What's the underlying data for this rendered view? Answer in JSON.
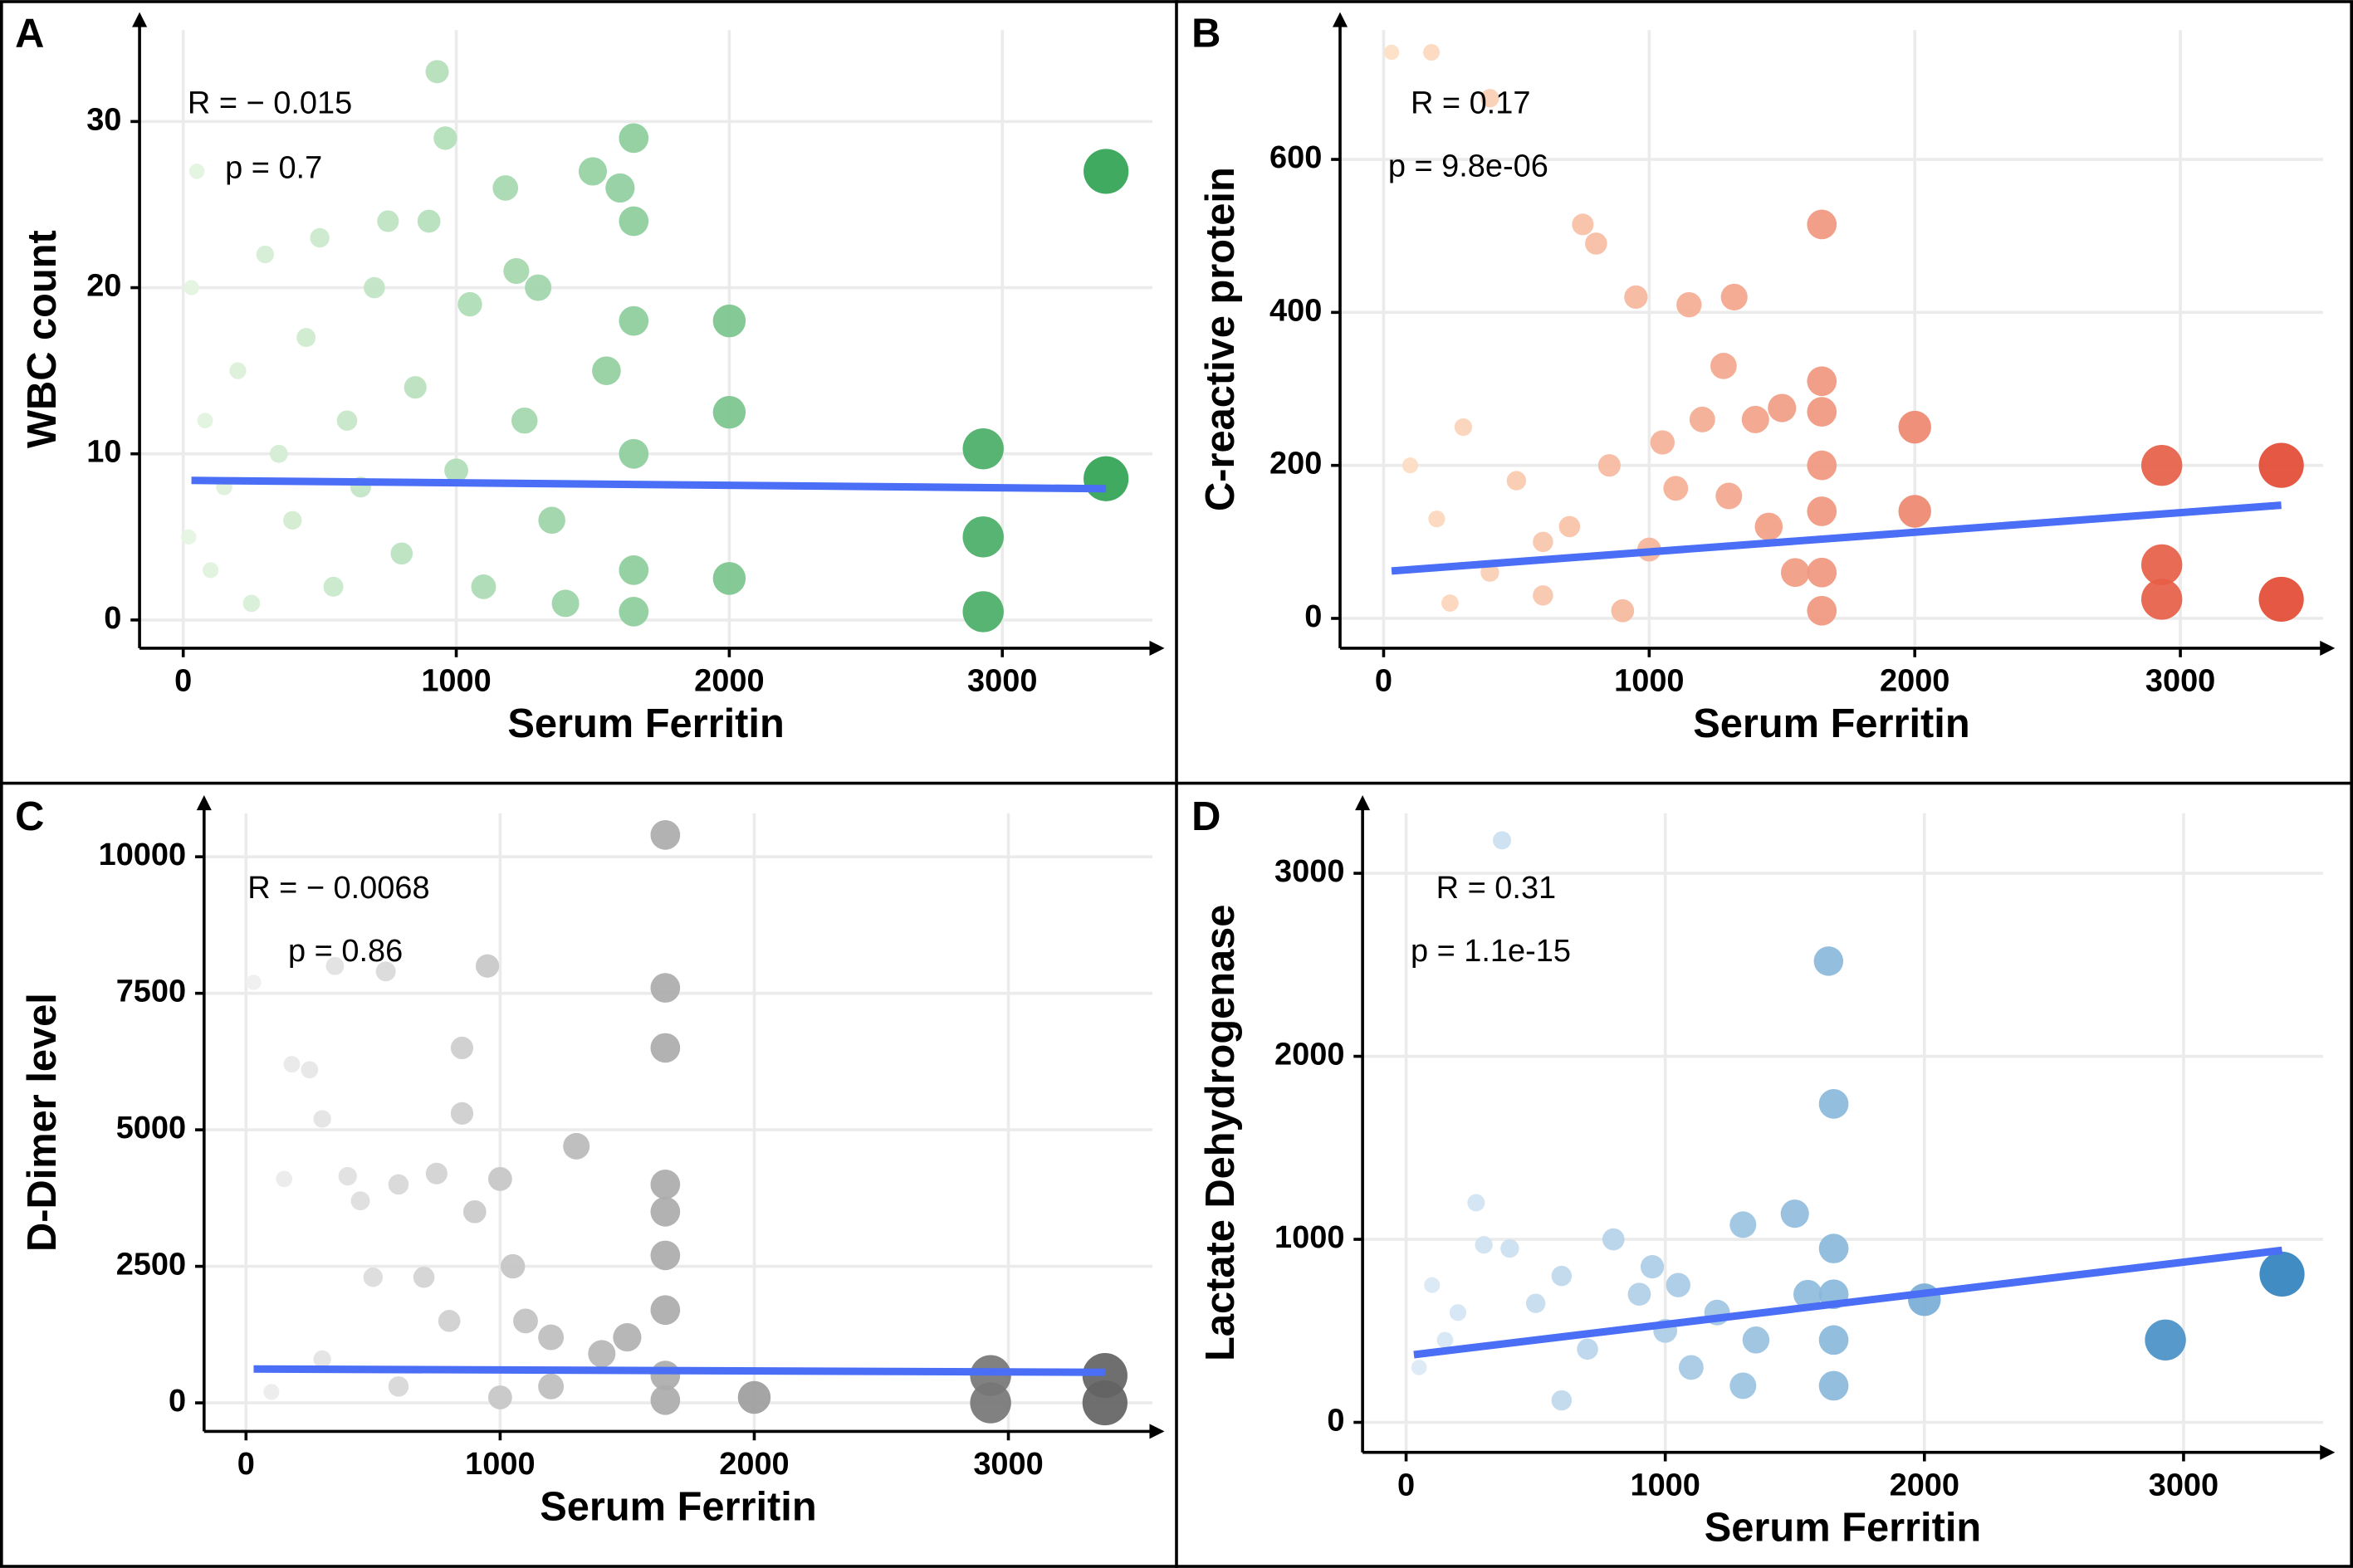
{
  "chart_data": [
    {
      "type": "scatter",
      "panel": "A",
      "x_label": "Serum Ferritin",
      "y_label": "WBC count",
      "annotations": [
        "R = − 0.015",
        "p = 0.7"
      ],
      "color_scale": [
        "#e5f5e0",
        "#31a354"
      ],
      "x": [
        20,
        30,
        50,
        80,
        100,
        150,
        200,
        250,
        300,
        350,
        400,
        450,
        500,
        550,
        600,
        650,
        700,
        750,
        800,
        850,
        900,
        930,
        960,
        1000,
        1050,
        1100,
        1180,
        1220,
        1250,
        1300,
        1350,
        1400,
        1500,
        1550,
        1600,
        1650,
        1650,
        1650,
        1650,
        1650,
        1650,
        2000,
        2000,
        2000,
        2930,
        2930,
        2930,
        3380,
        3380
      ],
      "values": [
        5,
        20,
        27,
        12,
        3,
        8,
        15,
        1,
        22,
        10,
        6,
        17,
        23,
        2,
        12,
        8,
        20,
        24,
        4,
        14,
        24,
        33,
        29,
        9,
        19,
        2,
        26,
        21,
        12,
        20,
        6,
        1,
        27,
        15,
        26,
        29,
        24,
        18,
        10,
        3,
        0.5,
        18,
        12.5,
        2.5,
        10.3,
        5,
        0.5,
        27,
        8.5
      ],
      "fit": {
        "color": "#4a6ef5",
        "x": [
          30,
          3380
        ],
        "values": [
          8.4,
          7.9
        ]
      },
      "xlim": [
        -160,
        3550
      ],
      "ylim": [
        -1.7,
        35.5
      ],
      "xticks": [
        0,
        1000,
        2000,
        3000
      ],
      "yticks": [
        0,
        10,
        20,
        30
      ],
      "grid": true
    },
    {
      "type": "scatter",
      "panel": "B",
      "x_label": "Serum Ferritin",
      "y_label": "C-reactive protein",
      "annotations": [
        "R = 0.17",
        "p = 9.8e-06"
      ],
      "color_scale": [
        "#fde0c5",
        "#e34a33"
      ],
      "x": [
        30,
        180,
        400,
        100,
        200,
        300,
        400,
        500,
        600,
        700,
        750,
        800,
        850,
        950,
        1000,
        1050,
        1100,
        1150,
        1200,
        1280,
        1300,
        1320,
        1400,
        1450,
        1500,
        1550,
        1650,
        1650,
        1650,
        1650,
        1650,
        1650,
        1650,
        2000,
        2000,
        2930,
        2930,
        2930,
        3380,
        3380,
        250,
        600,
        900
      ],
      "values": [
        740,
        740,
        680,
        200,
        130,
        250,
        60,
        180,
        30,
        120,
        515,
        490,
        200,
        420,
        90,
        230,
        170,
        410,
        260,
        330,
        160,
        420,
        260,
        120,
        275,
        60,
        515,
        310,
        270,
        200,
        140,
        60,
        10,
        250,
        140,
        200,
        70,
        25,
        200,
        25,
        20,
        100,
        10
      ],
      "fit": {
        "color": "#4a6ef5",
        "x": [
          30,
          3380
        ],
        "values": [
          62,
          148
        ]
      },
      "xlim": [
        -164,
        3537
      ],
      "ylim": [
        -39,
        769
      ],
      "xticks": [
        0,
        1000,
        2000,
        3000
      ],
      "yticks": [
        0,
        200,
        400,
        600
      ],
      "grid": true
    },
    {
      "type": "scatter",
      "panel": "C",
      "x_label": "Serum Ferritin",
      "y_label": "D-Dimer level",
      "annotations": [
        "R = − 0.0068",
        "p = 0.86"
      ],
      "color_scale": [
        "#f0f0f0",
        "#636363"
      ],
      "x": [
        30,
        150,
        180,
        250,
        300,
        350,
        400,
        450,
        500,
        550,
        600,
        700,
        750,
        800,
        850,
        850,
        900,
        950,
        1000,
        1050,
        1100,
        1200,
        1300,
        1400,
        1500,
        1650,
        1650,
        1650,
        1650,
        1650,
        1650,
        1650,
        1650,
        1650,
        2000,
        2930,
        2930,
        3380,
        3380,
        100,
        300,
        600,
        1000,
        1200
      ],
      "values": [
        7700,
        4100,
        6200,
        6100,
        5200,
        8000,
        4150,
        3700,
        2300,
        7900,
        4000,
        2300,
        4200,
        1500,
        6500,
        5300,
        3500,
        8000,
        4100,
        2500,
        1500,
        1200,
        4700,
        900,
        1200,
        10400,
        7600,
        6500,
        4000,
        3500,
        2700,
        1700,
        500,
        50,
        100,
        500,
        0,
        500,
        0,
        200,
        800,
        300,
        100,
        300
      ],
      "fit": {
        "color": "#4a6ef5",
        "x": [
          30,
          3380
        ],
        "values": [
          620,
          560
        ]
      },
      "xlim": [
        -165,
        3567
      ],
      "ylim": [
        -522,
        10797
      ],
      "xticks": [
        0,
        1000,
        2000,
        3000
      ],
      "yticks": [
        0,
        2500,
        5000,
        7500,
        10000
      ],
      "grid": true
    },
    {
      "type": "scatter",
      "panel": "D",
      "x_label": "Serum Ferritin",
      "y_label": "Lactate Dehydrogenase",
      "annotations": [
        "R = 0.31",
        "p = 1.1e-15"
      ],
      "color_scale": [
        "#deebf7",
        "#3182bd"
      ],
      "x": [
        370,
        270,
        300,
        400,
        100,
        200,
        500,
        600,
        700,
        800,
        900,
        950,
        1000,
        1050,
        1100,
        1200,
        1300,
        1350,
        1500,
        1550,
        1630,
        1650,
        1650,
        1650,
        1650,
        1650,
        2000,
        2930,
        3380,
        50,
        150,
        600,
        1300
      ],
      "values": [
        3180,
        1200,
        970,
        950,
        750,
        600,
        650,
        800,
        400,
        1000,
        700,
        850,
        500,
        750,
        300,
        600,
        1080,
        450,
        1140,
        700,
        2520,
        1740,
        950,
        700,
        450,
        200,
        670,
        450,
        810,
        300,
        450,
        120,
        200
      ],
      "fit": {
        "color": "#4a6ef5",
        "x": [
          30,
          3380
        ],
        "values": [
          370,
          940
        ]
      },
      "xlim": [
        -168,
        3538
      ],
      "ylim": [
        -164,
        3328
      ],
      "xticks": [
        0,
        1000,
        2000,
        3000
      ],
      "yticks": [
        0,
        1000,
        2000,
        3000
      ],
      "grid": true
    }
  ]
}
